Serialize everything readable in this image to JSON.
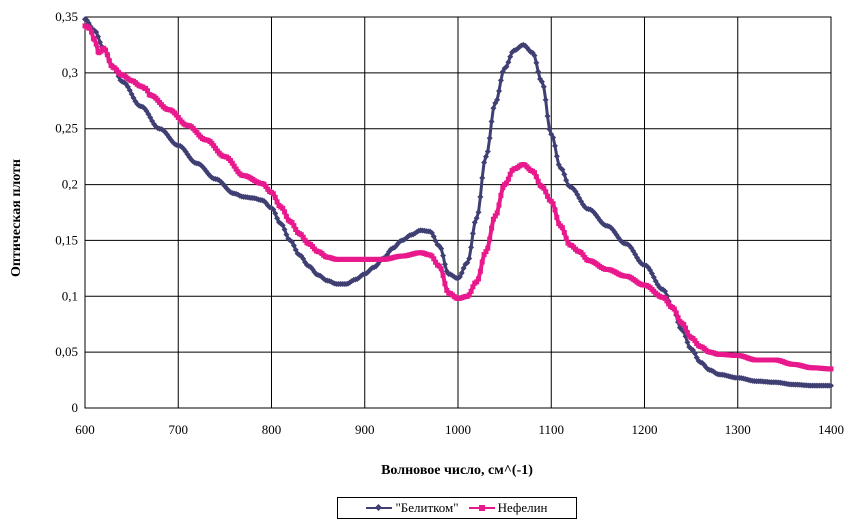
{
  "chart_data": {
    "type": "line",
    "title": "",
    "xlabel": "Волновое число, см^(-1)",
    "ylabel": "Оптическая плотн",
    "xlim": [
      600,
      1400
    ],
    "ylim": [
      0,
      0.35
    ],
    "x_ticks": [
      "600",
      "700",
      "800",
      "900",
      "1000",
      "1100",
      "1200",
      "1300",
      "1400"
    ],
    "y_ticks": [
      "0",
      "0,05",
      "0,1",
      "0,15",
      "0,2",
      "0,25",
      "0,3",
      "0,35"
    ],
    "grid": true,
    "legend_position": "bottom",
    "series": [
      {
        "name": "\"Белитком\"",
        "color": "#3f3f73",
        "marker": "diamond",
        "points": [
          [
            600,
            0.348
          ],
          [
            610,
            0.338
          ],
          [
            620,
            0.322
          ],
          [
            630,
            0.306
          ],
          [
            640,
            0.292
          ],
          [
            660,
            0.27
          ],
          [
            680,
            0.25
          ],
          [
            700,
            0.235
          ],
          [
            720,
            0.219
          ],
          [
            740,
            0.205
          ],
          [
            760,
            0.192
          ],
          [
            770,
            0.189
          ],
          [
            780,
            0.188
          ],
          [
            790,
            0.186
          ],
          [
            800,
            0.179
          ],
          [
            810,
            0.165
          ],
          [
            820,
            0.15
          ],
          [
            830,
            0.137
          ],
          [
            840,
            0.127
          ],
          [
            850,
            0.119
          ],
          [
            860,
            0.114
          ],
          [
            870,
            0.111
          ],
          [
            880,
            0.111
          ],
          [
            890,
            0.115
          ],
          [
            900,
            0.12
          ],
          [
            910,
            0.126
          ],
          [
            920,
            0.134
          ],
          [
            930,
            0.143
          ],
          [
            940,
            0.15
          ],
          [
            950,
            0.155
          ],
          [
            960,
            0.159
          ],
          [
            970,
            0.158
          ],
          [
            980,
            0.145
          ],
          [
            990,
            0.12
          ],
          [
            1000,
            0.116
          ],
          [
            1010,
            0.13
          ],
          [
            1020,
            0.17
          ],
          [
            1030,
            0.225
          ],
          [
            1040,
            0.273
          ],
          [
            1050,
            0.304
          ],
          [
            1060,
            0.32
          ],
          [
            1070,
            0.325
          ],
          [
            1080,
            0.318
          ],
          [
            1090,
            0.292
          ],
          [
            1100,
            0.245
          ],
          [
            1110,
            0.215
          ],
          [
            1120,
            0.198
          ],
          [
            1140,
            0.178
          ],
          [
            1160,
            0.163
          ],
          [
            1180,
            0.147
          ],
          [
            1200,
            0.128
          ],
          [
            1220,
            0.106
          ],
          [
            1230,
            0.09
          ],
          [
            1240,
            0.07
          ],
          [
            1250,
            0.053
          ],
          [
            1260,
            0.041
          ],
          [
            1270,
            0.034
          ],
          [
            1280,
            0.03
          ],
          [
            1300,
            0.027
          ],
          [
            1320,
            0.024
          ],
          [
            1340,
            0.023
          ],
          [
            1360,
            0.021
          ],
          [
            1380,
            0.02
          ],
          [
            1400,
            0.02
          ]
        ]
      },
      {
        "name": "Нефелин",
        "color": "#e8198c",
        "marker": "square",
        "points": [
          [
            600,
            0.342
          ],
          [
            605,
            0.34
          ],
          [
            610,
            0.33
          ],
          [
            615,
            0.318
          ],
          [
            620,
            0.322
          ],
          [
            630,
            0.305
          ],
          [
            640,
            0.298
          ],
          [
            650,
            0.293
          ],
          [
            660,
            0.288
          ],
          [
            665,
            0.286
          ],
          [
            670,
            0.28
          ],
          [
            690,
            0.267
          ],
          [
            710,
            0.253
          ],
          [
            730,
            0.24
          ],
          [
            750,
            0.225
          ],
          [
            770,
            0.208
          ],
          [
            790,
            0.201
          ],
          [
            800,
            0.193
          ],
          [
            810,
            0.18
          ],
          [
            820,
            0.167
          ],
          [
            830,
            0.156
          ],
          [
            840,
            0.147
          ],
          [
            850,
            0.14
          ],
          [
            860,
            0.135
          ],
          [
            870,
            0.133
          ],
          [
            880,
            0.133
          ],
          [
            900,
            0.133
          ],
          [
            920,
            0.133
          ],
          [
            940,
            0.136
          ],
          [
            960,
            0.139
          ],
          [
            970,
            0.137
          ],
          [
            980,
            0.127
          ],
          [
            990,
            0.103
          ],
          [
            1000,
            0.098
          ],
          [
            1010,
            0.1
          ],
          [
            1020,
            0.113
          ],
          [
            1030,
            0.14
          ],
          [
            1040,
            0.172
          ],
          [
            1050,
            0.2
          ],
          [
            1060,
            0.214
          ],
          [
            1070,
            0.218
          ],
          [
            1080,
            0.212
          ],
          [
            1090,
            0.198
          ],
          [
            1100,
            0.185
          ],
          [
            1110,
            0.163
          ],
          [
            1120,
            0.146
          ],
          [
            1130,
            0.14
          ],
          [
            1140,
            0.132
          ],
          [
            1160,
            0.124
          ],
          [
            1180,
            0.118
          ],
          [
            1200,
            0.11
          ],
          [
            1220,
            0.099
          ],
          [
            1230,
            0.09
          ],
          [
            1240,
            0.076
          ],
          [
            1250,
            0.063
          ],
          [
            1260,
            0.055
          ],
          [
            1270,
            0.05
          ],
          [
            1280,
            0.048
          ],
          [
            1300,
            0.047
          ],
          [
            1320,
            0.043
          ],
          [
            1340,
            0.043
          ],
          [
            1360,
            0.039
          ],
          [
            1380,
            0.036
          ],
          [
            1400,
            0.035
          ]
        ]
      }
    ]
  }
}
